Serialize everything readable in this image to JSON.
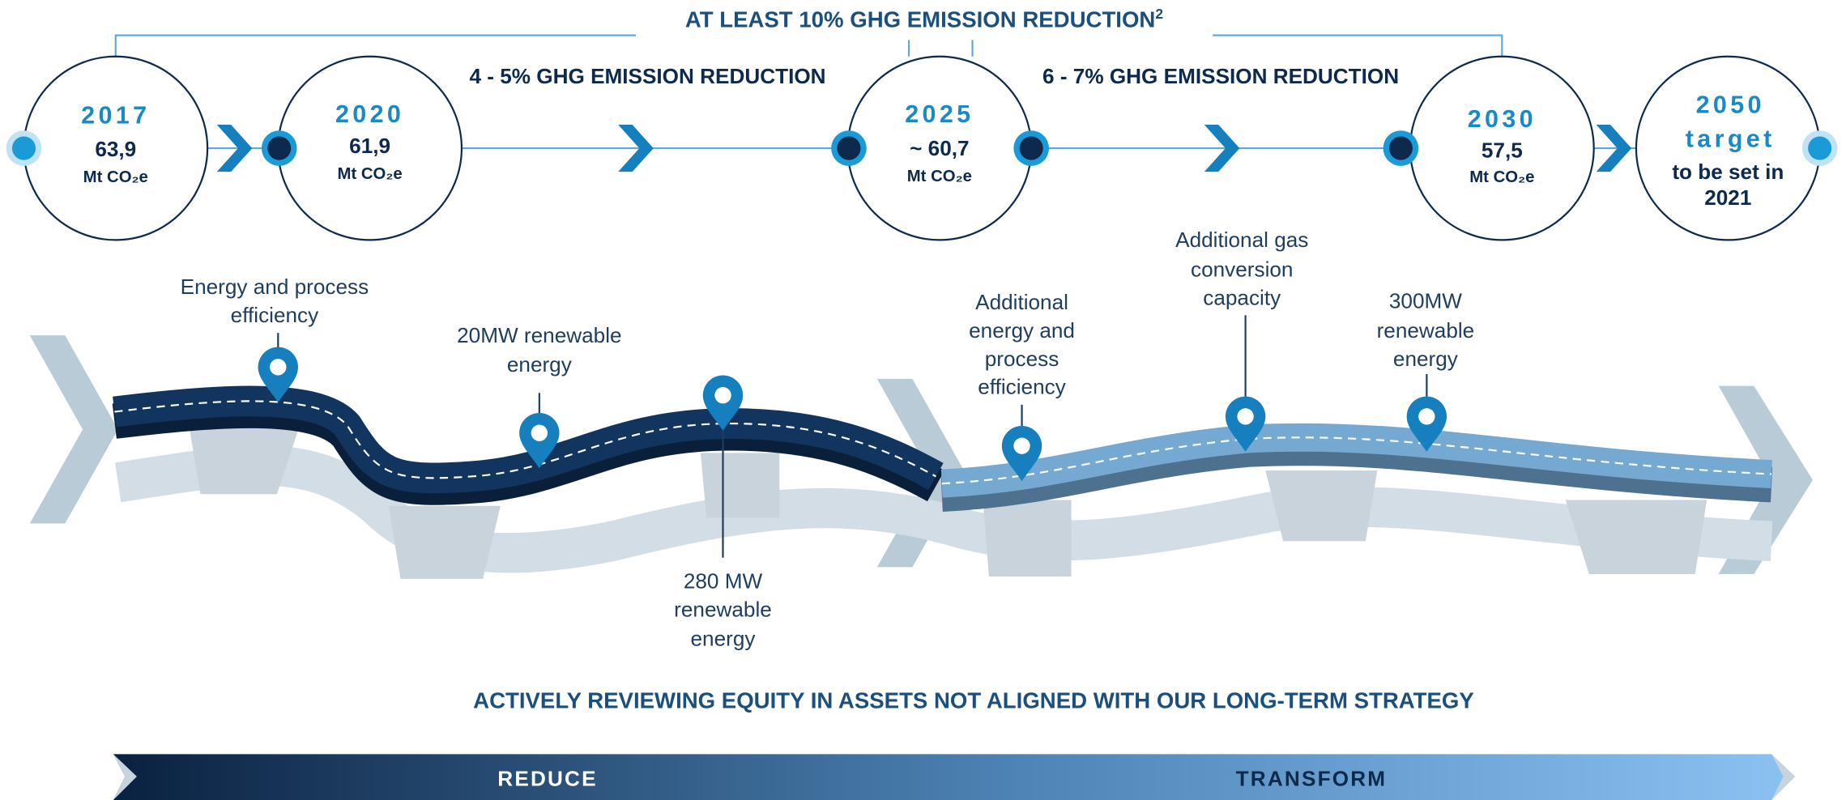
{
  "header": {
    "title": "AT LEAST 10% GHG EMISSION REDUCTION",
    "footnote": "2"
  },
  "periods": [
    {
      "label": "4 - 5% GHG EMISSION REDUCTION"
    },
    {
      "label": "6 - 7% GHG EMISSION REDUCTION"
    }
  ],
  "milestones": [
    {
      "year": "2017",
      "value": "63,9",
      "unit": "Mt CO₂e"
    },
    {
      "year": "2020",
      "value": "61,9",
      "unit": "Mt CO₂e"
    },
    {
      "year": "2025",
      "value": "~ 60,7",
      "unit": "Mt CO₂e"
    },
    {
      "year": "2030",
      "value": "57,5",
      "unit": "Mt CO₂e"
    },
    {
      "year": "2050",
      "value": "target",
      "lines": [
        "to be set in",
        "2021"
      ]
    }
  ],
  "annotations": [
    {
      "lines": [
        "Energy and process",
        "efficiency"
      ]
    },
    {
      "lines": [
        "20MW renewable",
        "energy"
      ]
    },
    {
      "lines": [
        "280 MW",
        "renewable",
        "energy"
      ]
    },
    {
      "lines": [
        "Additional",
        "energy and",
        "process",
        "efficiency"
      ]
    },
    {
      "lines": [
        "Additional gas",
        "conversion",
        "capacity"
      ]
    },
    {
      "lines": [
        "300MW",
        "renewable",
        "energy"
      ]
    }
  ],
  "statement": "ACTIVELY REVIEWING EQUITY IN ASSETS NOT ALIGNED WITH OUR LONG-TERM STRATEGY",
  "phases": [
    "REDUCE",
    "TRANSFORM"
  ]
}
